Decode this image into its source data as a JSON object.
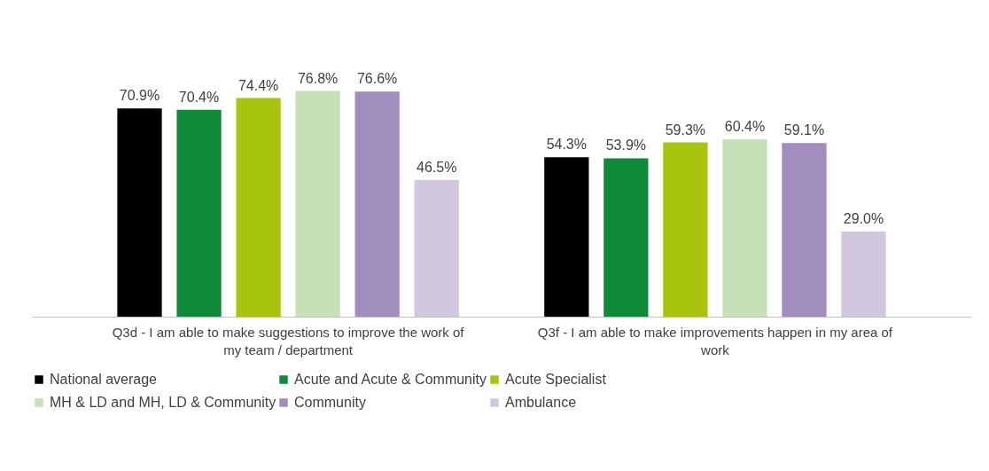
{
  "chart_data": {
    "type": "bar",
    "categories": [
      "Q3d - I am able to make suggestions to improve the work of my team / department",
      "Q3f - I am able to make improvements happen in my area of work"
    ],
    "series": [
      {
        "name": "National average",
        "color": "#000000",
        "values": [
          70.9,
          54.3
        ],
        "value_labels": [
          "70.9%",
          "54.3%"
        ]
      },
      {
        "name": "Acute and Acute & Community",
        "color": "#0e8a3a",
        "values": [
          70.4,
          53.9
        ],
        "value_labels": [
          "70.4%",
          "53.9%"
        ]
      },
      {
        "name": "Acute Specialist",
        "color": "#a9c40c",
        "values": [
          74.4,
          59.3
        ],
        "value_labels": [
          "74.4%",
          "59.3%"
        ]
      },
      {
        "name": "MH & LD and MH, LD & Community",
        "color": "#c5e1b5",
        "values": [
          76.8,
          60.4
        ],
        "value_labels": [
          "76.8%",
          "60.4%"
        ]
      },
      {
        "name": "Community",
        "color": "#a28dbf",
        "values": [
          76.6,
          59.1
        ],
        "value_labels": [
          "76.6%",
          "59.1%"
        ]
      },
      {
        "name": "Ambulance",
        "color": "#d1c8df",
        "values": [
          46.5,
          29.0
        ],
        "value_labels": [
          "46.5%",
          "29.0%"
        ]
      }
    ],
    "legend": "bottom"
  }
}
